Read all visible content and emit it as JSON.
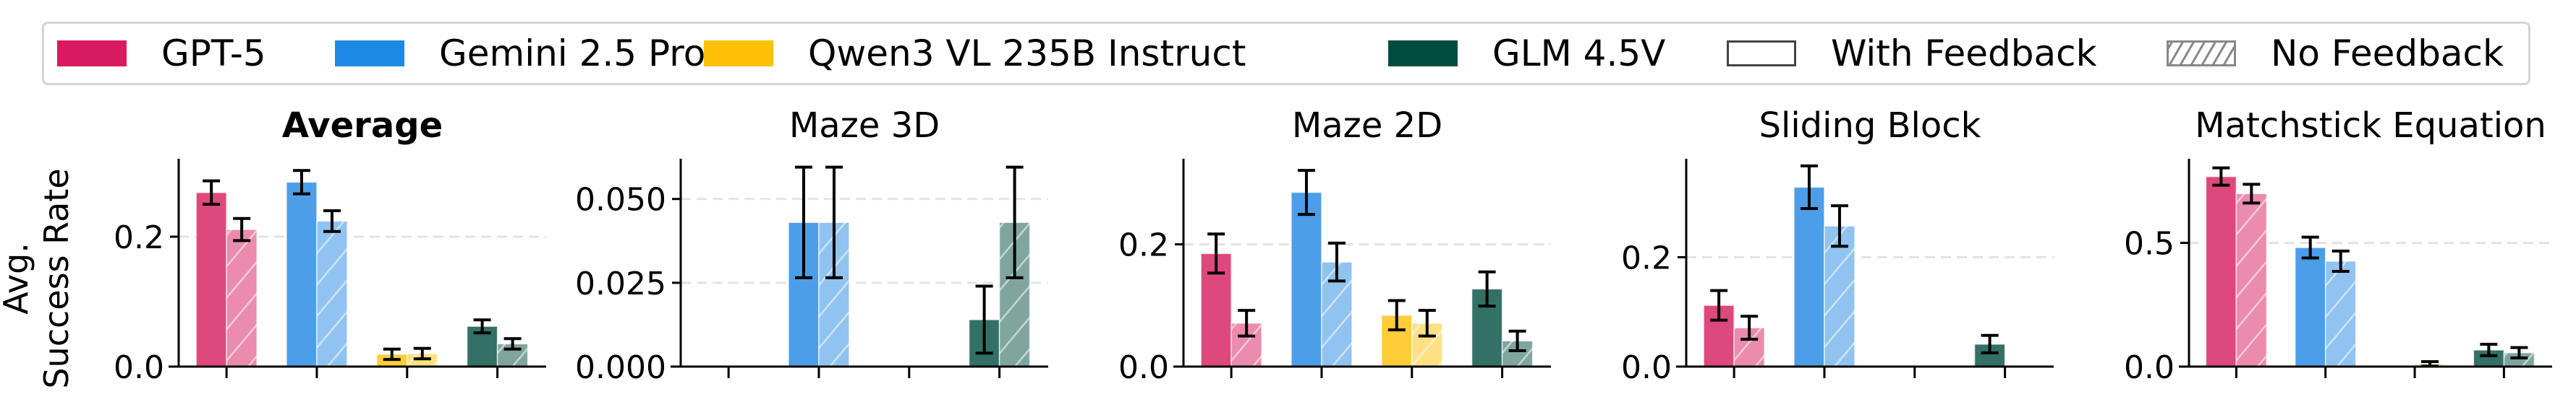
{
  "legend": {
    "items": [
      {
        "label": "GPT-5",
        "color": "#D81B60",
        "type": "model"
      },
      {
        "label": "Gemini 2.5 Pro",
        "color": "#1E88E5",
        "type": "model"
      },
      {
        "label": "Qwen3 VL 235B Instruct",
        "color": "#FFC107",
        "type": "model"
      },
      {
        "label": "GLM 4.5V",
        "color": "#004D40",
        "type": "model"
      },
      {
        "label": "With Feedback",
        "color": "#ffffff",
        "type": "pattern-solid"
      },
      {
        "label": "No Feedback",
        "color": "#ffffff",
        "type": "pattern-hatch"
      }
    ]
  },
  "y_axis_title_line1": "Avg.",
  "y_axis_title_line2": "Success Rate",
  "chart_data": [
    {
      "type": "bar",
      "title": "Average",
      "title_bold": true,
      "categories": [
        "GPT-5",
        "Gemini 2.5 Pro",
        "Qwen3 VL 235B Instruct",
        "GLM 4.5V"
      ],
      "series": [
        {
          "name": "With Feedback",
          "values": [
            0.268,
            0.284,
            0.019,
            0.062
          ],
          "err": [
            0.018,
            0.018,
            0.008,
            0.01
          ]
        },
        {
          "name": "No Feedback",
          "values": [
            0.211,
            0.224,
            0.02,
            0.035
          ],
          "err": [
            0.017,
            0.016,
            0.008,
            0.008
          ]
        }
      ],
      "ylabel": "Avg. Success Rate",
      "yticks": [
        0.0,
        0.2
      ],
      "ytick_labels": [
        "0.0",
        "0.2"
      ],
      "ylim": [
        0,
        0.32
      ],
      "grid": "dashed horizontal at ticks"
    },
    {
      "type": "bar",
      "title": "Maze 3D",
      "categories": [
        "GPT-5",
        "Gemini 2.5 Pro",
        "Qwen3 VL 235B Instruct",
        "GLM 4.5V"
      ],
      "series": [
        {
          "name": "With Feedback",
          "values": [
            0.0,
            0.043,
            0.0,
            0.014
          ],
          "err": [
            0.0,
            0.0165,
            0.0,
            0.01
          ]
        },
        {
          "name": "No Feedback",
          "values": [
            0.0,
            0.043,
            0.0,
            0.043
          ],
          "err": [
            0.0,
            0.0165,
            0.0,
            0.0165
          ]
        }
      ],
      "yticks": [
        0.0,
        0.025,
        0.05
      ],
      "ytick_labels": [
        "0.000",
        "0.025",
        "0.050"
      ],
      "ylim": [
        0,
        0.062
      ],
      "grid": "dashed horizontal at ticks"
    },
    {
      "type": "bar",
      "title": "Maze 2D",
      "categories": [
        "GPT-5",
        "Gemini 2.5 Pro",
        "Qwen3 VL 235B Instruct",
        "GLM 4.5V"
      ],
      "series": [
        {
          "name": "With Feedback",
          "values": [
            0.185,
            0.285,
            0.084,
            0.127
          ],
          "err": [
            0.032,
            0.036,
            0.024,
            0.028
          ]
        },
        {
          "name": "No Feedback",
          "values": [
            0.071,
            0.171,
            0.071,
            0.042
          ],
          "err": [
            0.021,
            0.031,
            0.021,
            0.016
          ]
        }
      ],
      "yticks": [
        0.0,
        0.2
      ],
      "ytick_labels": [
        "0.0",
        "0.2"
      ],
      "ylim": [
        0,
        0.34
      ],
      "grid": "dashed horizontal at ticks"
    },
    {
      "type": "bar",
      "title": "Sliding Block",
      "categories": [
        "GPT-5",
        "Gemini 2.5 Pro",
        "Qwen3 VL 235B Instruct",
        "GLM 4.5V"
      ],
      "series": [
        {
          "name": "With Feedback",
          "values": [
            0.112,
            0.328,
            0.0,
            0.041
          ],
          "err": [
            0.027,
            0.039,
            0.0,
            0.016
          ]
        },
        {
          "name": "No Feedback",
          "values": [
            0.071,
            0.257,
            0.0,
            0.0
          ],
          "err": [
            0.021,
            0.037,
            0.0,
            0.0
          ]
        }
      ],
      "yticks": [
        0.0,
        0.2
      ],
      "ytick_labels": [
        "0.0",
        "0.2"
      ],
      "ylim": [
        0,
        0.38
      ],
      "grid": "dashed horizontal at ticks"
    },
    {
      "type": "bar",
      "title": "Matchstick Equation",
      "categories": [
        "GPT-5",
        "Gemini 2.5 Pro",
        "Qwen3 VL 235B Instruct",
        "GLM 4.5V"
      ],
      "series": [
        {
          "name": "With Feedback",
          "values": [
            0.768,
            0.481,
            0.0,
            0.067
          ],
          "err": [
            0.035,
            0.042,
            0.0,
            0.023
          ]
        },
        {
          "name": "No Feedback",
          "values": [
            0.699,
            0.426,
            0.011,
            0.056
          ],
          "err": [
            0.038,
            0.041,
            0.009,
            0.021
          ]
        }
      ],
      "yticks": [
        0.0,
        0.5
      ],
      "ytick_labels": [
        "0.0",
        "0.5"
      ],
      "ylim": [
        0,
        0.84
      ],
      "grid": "dashed horizontal at ticks"
    }
  ],
  "colors": {
    "GPT-5": {
      "solid": "#DE497D",
      "hatch_fill": "#EB8BAD"
    },
    "Gemini 2.5 Pro": {
      "solid": "#4C9EE8",
      "hatch_fill": "#91C3F0"
    },
    "Qwen3 VL 235B Instruct": {
      "solid": "#FFCD38",
      "hatch_fill": "#FFE083"
    },
    "GLM 4.5V": {
      "solid": "#337066",
      "hatch_fill": "#7FA59E"
    }
  }
}
